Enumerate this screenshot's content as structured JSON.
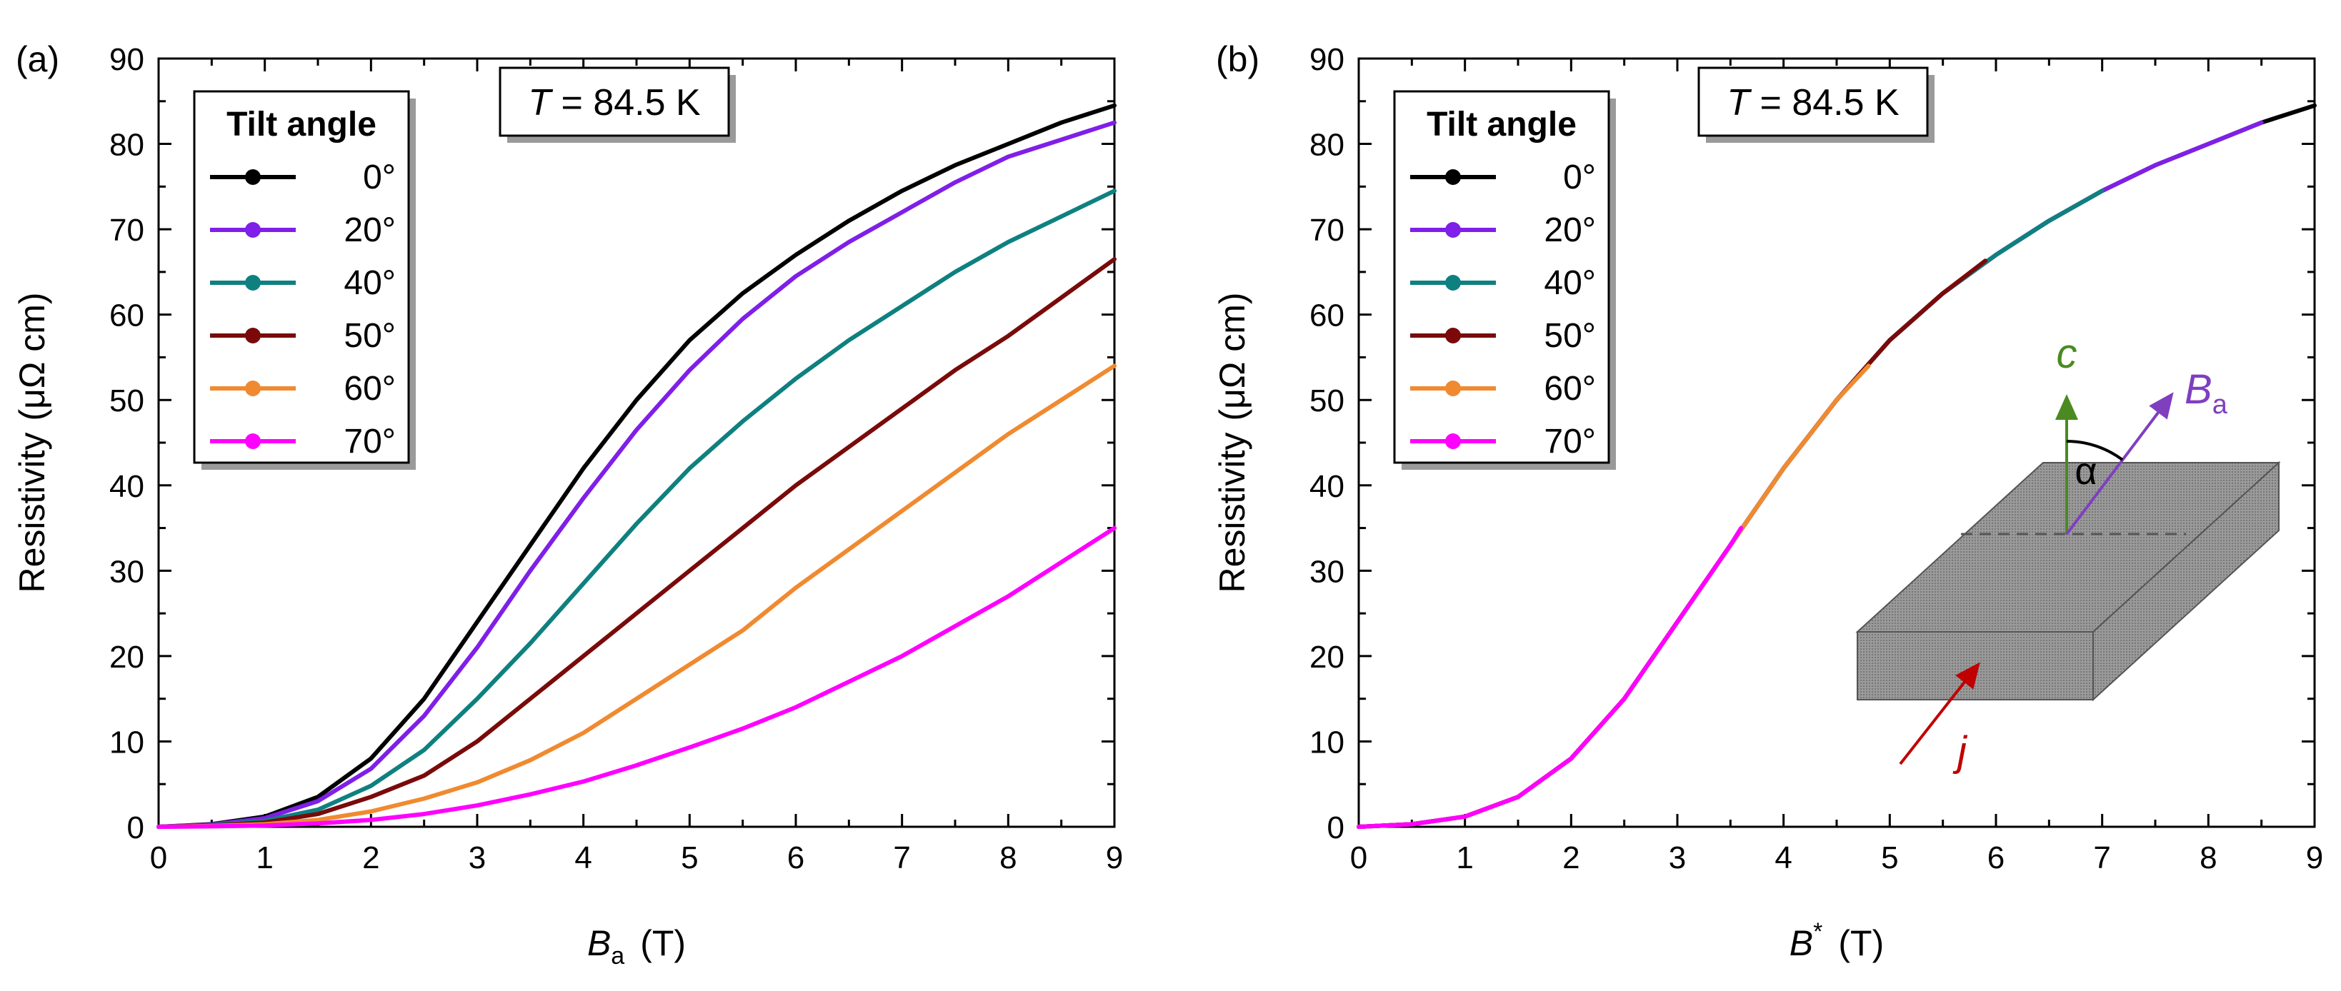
{
  "chart_data": [
    {
      "type": "line",
      "panel_label": "(a)",
      "xlabel": "B",
      "xlabel_sub": "a",
      "xlabel_unit": "(T)",
      "ylabel": "Resistivity",
      "ylabel_unit": "(μΩ cm)",
      "xlim": [
        0,
        9
      ],
      "ylim": [
        0,
        90
      ],
      "xticks": [
        "0",
        "1",
        "2",
        "3",
        "4",
        "5",
        "6",
        "7",
        "8",
        "9"
      ],
      "yticks": [
        "0",
        "10",
        "20",
        "30",
        "40",
        "50",
        "60",
        "70",
        "80",
        "90"
      ],
      "annotation_T": "T",
      "annotation_rest": " = 84.5 K",
      "legend_title": "Tilt angle",
      "legend_position": "top-left",
      "series": [
        {
          "name": "0°",
          "color": "#000000",
          "x": [
            0,
            0.5,
            1,
            1.5,
            2,
            2.5,
            3,
            3.5,
            4,
            4.5,
            5,
            5.5,
            6,
            6.5,
            7,
            7.5,
            8,
            8.5,
            9
          ],
          "y": [
            0,
            0.3,
            1.2,
            3.5,
            8,
            15,
            24,
            33,
            42,
            50,
            57,
            62.5,
            67,
            71,
            74.5,
            77.5,
            80,
            82.5,
            84.5
          ]
        },
        {
          "name": "20°",
          "color": "#7f1fe8",
          "x": [
            0,
            0.5,
            1,
            1.5,
            2,
            2.5,
            3,
            3.5,
            4,
            4.5,
            5,
            5.5,
            6,
            6.5,
            7,
            7.5,
            8,
            8.5,
            9
          ],
          "y": [
            0,
            0.25,
            1,
            3,
            6.8,
            13,
            21,
            30,
            38.5,
            46.5,
            53.5,
            59.5,
            64.5,
            68.5,
            72,
            75.5,
            78.5,
            80.5,
            82.5
          ]
        },
        {
          "name": "40°",
          "color": "#0f8080",
          "x": [
            0,
            0.5,
            1,
            1.5,
            2,
            2.5,
            3,
            3.5,
            4,
            4.5,
            5,
            5.5,
            6,
            6.5,
            7,
            7.5,
            8,
            8.5,
            9
          ],
          "y": [
            0,
            0.2,
            0.7,
            2,
            4.8,
            9,
            15,
            21.5,
            28.5,
            35.5,
            42,
            47.5,
            52.5,
            57,
            61,
            65,
            68.5,
            71.5,
            74.5
          ]
        },
        {
          "name": "50°",
          "color": "#7a0a0a",
          "x": [
            0,
            0.5,
            1,
            1.5,
            2,
            2.5,
            3,
            3.5,
            4,
            4.5,
            5,
            5.5,
            6,
            6.5,
            7,
            7.5,
            8,
            8.5,
            9
          ],
          "y": [
            0,
            0.15,
            0.5,
            1.5,
            3.5,
            6,
            10,
            15,
            20,
            25,
            30,
            35,
            40,
            44.5,
            49,
            53.5,
            57.5,
            62,
            66.5
          ]
        },
        {
          "name": "60°",
          "color": "#f08a30",
          "x": [
            0,
            0.5,
            1,
            1.5,
            2,
            2.5,
            3,
            3.5,
            4,
            4.5,
            5,
            5.5,
            6,
            6.5,
            7,
            7.5,
            8,
            8.5,
            9
          ],
          "y": [
            0,
            0.1,
            0.3,
            0.8,
            1.8,
            3.3,
            5.2,
            7.8,
            11,
            15,
            19,
            23,
            28,
            32.5,
            37,
            41.5,
            46,
            50,
            54
          ]
        },
        {
          "name": "70°",
          "color": "#ff00ff",
          "x": [
            0,
            0.5,
            1,
            1.5,
            2,
            2.5,
            3,
            3.5,
            4,
            4.5,
            5,
            5.5,
            6,
            6.5,
            7,
            7.5,
            8,
            8.5,
            9
          ],
          "y": [
            0,
            0.05,
            0.15,
            0.4,
            0.8,
            1.5,
            2.5,
            3.8,
            5.3,
            7.2,
            9.3,
            11.5,
            14,
            17,
            20,
            23.5,
            27,
            31,
            35
          ]
        }
      ]
    },
    {
      "type": "line",
      "panel_label": "(b)",
      "xlabel": "B",
      "xlabel_sup": "*",
      "xlabel_unit": "(T)",
      "ylabel": "Resistivity",
      "ylabel_unit": "(μΩ cm)",
      "xlim": [
        0,
        9
      ],
      "ylim": [
        0,
        90
      ],
      "xticks": [
        "0",
        "1",
        "2",
        "3",
        "4",
        "5",
        "6",
        "7",
        "8",
        "9"
      ],
      "yticks": [
        "0",
        "10",
        "20",
        "30",
        "40",
        "50",
        "60",
        "70",
        "80",
        "90"
      ],
      "annotation_T": "T",
      "annotation_rest": " = 84.5 K",
      "legend_title": "Tilt angle",
      "legend_position": "top-left",
      "series": [
        {
          "name": "0°",
          "color": "#000000",
          "x": [
            0,
            0.5,
            1,
            1.5,
            2,
            2.5,
            3,
            3.5,
            4,
            4.5,
            5,
            5.5,
            6,
            6.5,
            7,
            7.5,
            8,
            8.5,
            9
          ],
          "y": [
            0,
            0.3,
            1.2,
            3.5,
            8,
            15,
            24,
            33,
            42,
            50,
            57,
            62.5,
            67,
            71,
            74.5,
            77.5,
            80,
            82.5,
            84.5
          ]
        },
        {
          "name": "20°",
          "color": "#7f1fe8",
          "x": [
            0,
            0.5,
            1,
            1.5,
            2,
            2.5,
            3,
            3.5,
            4,
            4.5,
            5,
            5.5,
            6,
            6.5,
            7,
            7.5,
            8,
            8.5
          ],
          "y": [
            0,
            0.3,
            1.2,
            3.5,
            8,
            15,
            24,
            33,
            42,
            50,
            57,
            62.5,
            67,
            71,
            74.5,
            77.5,
            80,
            82.5
          ]
        },
        {
          "name": "40°",
          "color": "#0f8080",
          "x": [
            0,
            0.5,
            1,
            1.5,
            2,
            2.5,
            3,
            3.5,
            4,
            4.5,
            5,
            5.5,
            6,
            6.5,
            7
          ],
          "y": [
            0,
            0.3,
            1.2,
            3.5,
            8,
            15,
            24,
            33,
            42,
            50,
            57,
            62.5,
            67,
            71,
            74.5
          ]
        },
        {
          "name": "50°",
          "color": "#7a0a0a",
          "x": [
            0,
            0.5,
            1,
            1.5,
            2,
            2.5,
            3,
            3.5,
            4,
            4.5,
            5,
            5.5,
            5.9
          ],
          "y": [
            0,
            0.3,
            1.2,
            3.5,
            8,
            15,
            24,
            33,
            42,
            50,
            57,
            62.5,
            66.3
          ]
        },
        {
          "name": "60°",
          "color": "#f08a30",
          "x": [
            0,
            0.5,
            1,
            1.5,
            2,
            2.5,
            3,
            3.5,
            4,
            4.5,
            4.8
          ],
          "y": [
            0,
            0.3,
            1.2,
            3.5,
            8,
            15,
            24,
            33,
            42,
            50,
            54
          ]
        },
        {
          "name": "70°",
          "color": "#ff00ff",
          "x": [
            0,
            0.5,
            1,
            1.5,
            2,
            2.5,
            3,
            3.5,
            3.6
          ],
          "y": [
            0,
            0.3,
            1.2,
            3.5,
            8,
            15,
            24,
            33,
            35
          ]
        }
      ],
      "inset": {
        "c_label": "c",
        "c_color": "#4a8a20",
        "B_label": "B",
        "B_sub": "a",
        "B_color": "#7f3fbf",
        "alpha_label": "α",
        "j_label": "j",
        "j_color": "#c00000"
      }
    }
  ]
}
